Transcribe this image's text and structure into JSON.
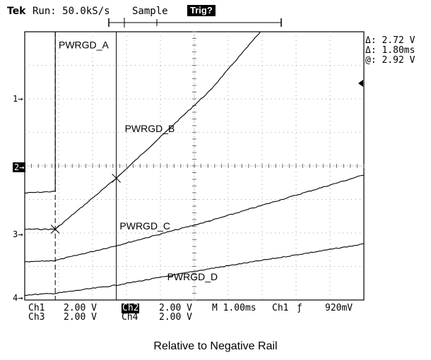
{
  "header": {
    "brand": "Tek",
    "run": "Run: 50.0kS/s",
    "mode": "Sample",
    "trigger_status": "Trig?"
  },
  "cursor_readouts": {
    "delta_v": "Δ: 2.72 V",
    "delta_t": "Δ: 1.80ms",
    "at_v": "@: 2.92 V"
  },
  "channel_markers": [
    "1→",
    "2→",
    "3→",
    "4→"
  ],
  "status_bar": {
    "row1": {
      "ch1_label": "Ch1",
      "ch1_scale": "2.00 V",
      "ch2_label": "Ch2",
      "ch2_scale": "2.00 V",
      "timebase": "M 1.00ms",
      "trig_src": "Ch1",
      "trig_slope": "ƒ",
      "trig_level": "920mV"
    },
    "row2": {
      "ch3_label": "Ch3",
      "ch3_scale": "2.00 V",
      "ch4_label": "Ch4",
      "ch4_scale": "2.00 V"
    }
  },
  "caption": "Relative to Negative Rail",
  "chart_data": {
    "type": "line",
    "x_unit": "ms",
    "x_range": [
      -0.45,
      9.55
    ],
    "y_unit": "div",
    "y_range": [
      0,
      8
    ],
    "grid": true,
    "series": [
      {
        "name": "PWRGD_A",
        "x": [
          -0.45,
          0.45,
          0.45,
          0.45
        ],
        "y": [
          3.1,
          3.15,
          3.2,
          8.0
        ]
      },
      {
        "name": "PWRGD_B",
        "x": [
          -0.45,
          0.45,
          2.25,
          5.0,
          6.5
        ],
        "y": [
          2.0,
          2.0,
          3.55,
          6.2,
          8.0
        ]
      },
      {
        "name": "PWRGD_C",
        "x": [
          -0.45,
          0.45,
          2.25,
          5.0,
          9.55
        ],
        "y": [
          1.0,
          1.05,
          1.5,
          2.25,
          3.65
        ]
      },
      {
        "name": "PWRGD_D",
        "x": [
          -0.45,
          0.45,
          2.25,
          5.0,
          9.55
        ],
        "y": [
          0.0,
          0.05,
          0.3,
          0.8,
          1.55
        ]
      }
    ],
    "labels": [
      {
        "text": "PWRGD_A",
        "x": 0.55,
        "y": 7.5
      },
      {
        "text": "PWRGD_B",
        "x": 2.5,
        "y": 4.95
      },
      {
        "text": "PWRGD_C",
        "x": 2.35,
        "y": 2.0
      },
      {
        "text": "PWRGD_D",
        "x": 3.75,
        "y": 0.45
      }
    ],
    "channel_ground_div": [
      3.1,
      2.0,
      1.0,
      0.0
    ],
    "cursors": {
      "t1_ms": 0.45,
      "t2_ms": 2.25,
      "markers": [
        {
          "x": 0.45,
          "y": 2.0
        },
        {
          "x": 2.25,
          "y": 3.55
        }
      ]
    },
    "trigger_marker_ms": 0.45
  }
}
